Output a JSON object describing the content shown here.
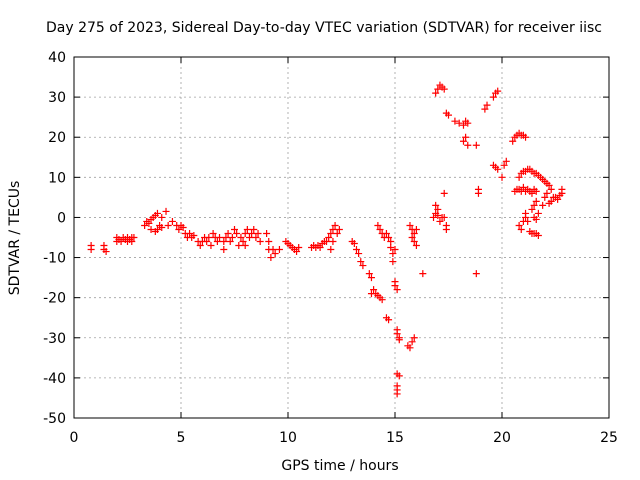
{
  "chart_data": {
    "type": "scatter",
    "title": "Day 275 of 2023, Sidereal Day-to-day VTEC variation (SDTVAR) for receiver iisc",
    "xlabel": "GPS time / hours",
    "ylabel": "SDTVAR / TECUs",
    "xlim": [
      0,
      25
    ],
    "ylim": [
      -50,
      40
    ],
    "xticks": [
      0,
      5,
      10,
      15,
      20,
      25
    ],
    "yticks": [
      -50,
      -40,
      -30,
      -20,
      -10,
      0,
      10,
      20,
      30,
      40
    ],
    "grid": true,
    "marker": "+",
    "series": [
      {
        "name": "SDTVAR",
        "color": "#ff0000",
        "points": [
          [
            0.8,
            -7
          ],
          [
            0.8,
            -8
          ],
          [
            1.4,
            -7
          ],
          [
            1.4,
            -8
          ],
          [
            1.5,
            -8.5
          ],
          [
            2.0,
            -5
          ],
          [
            2.0,
            -6
          ],
          [
            2.1,
            -5.5
          ],
          [
            2.2,
            -6
          ],
          [
            2.3,
            -5
          ],
          [
            2.4,
            -5.5
          ],
          [
            2.5,
            -5
          ],
          [
            2.5,
            -6
          ],
          [
            2.6,
            -5.5
          ],
          [
            2.7,
            -5
          ],
          [
            2.8,
            -5
          ],
          [
            2.7,
            -6
          ],
          [
            3.3,
            -2
          ],
          [
            3.4,
            -1
          ],
          [
            3.5,
            -1.5
          ],
          [
            3.6,
            -0.5
          ],
          [
            3.6,
            -3
          ],
          [
            3.7,
            0
          ],
          [
            3.8,
            -3.5
          ],
          [
            3.8,
            0.5
          ],
          [
            3.9,
            -3
          ],
          [
            3.9,
            1
          ],
          [
            4.0,
            -2
          ],
          [
            4.1,
            0
          ],
          [
            4.1,
            -2.5
          ],
          [
            4.3,
            1.5
          ],
          [
            4.4,
            -2
          ],
          [
            4.6,
            -1
          ],
          [
            4.8,
            -2
          ],
          [
            4.9,
            -3
          ],
          [
            5.0,
            -2
          ],
          [
            5.1,
            -2.5
          ],
          [
            5.2,
            -4
          ],
          [
            5.3,
            -5
          ],
          [
            5.4,
            -4
          ],
          [
            5.5,
            -5
          ],
          [
            5.6,
            -4.5
          ],
          [
            5.8,
            -6
          ],
          [
            5.9,
            -7
          ],
          [
            6.0,
            -6
          ],
          [
            6.1,
            -5
          ],
          [
            6.2,
            -6
          ],
          [
            6.3,
            -5
          ],
          [
            6.4,
            -7
          ],
          [
            6.5,
            -4
          ],
          [
            6.6,
            -5
          ],
          [
            6.7,
            -6
          ],
          [
            6.8,
            -5
          ],
          [
            7.0,
            -6
          ],
          [
            7.0,
            -8
          ],
          [
            7.1,
            -5
          ],
          [
            7.2,
            -4
          ],
          [
            7.3,
            -6
          ],
          [
            7.4,
            -5
          ],
          [
            7.5,
            -3
          ],
          [
            7.6,
            -4
          ],
          [
            7.7,
            -7
          ],
          [
            7.8,
            -5
          ],
          [
            7.9,
            -6
          ],
          [
            8.0,
            -4
          ],
          [
            8.0,
            -7
          ],
          [
            8.1,
            -3
          ],
          [
            8.2,
            -5
          ],
          [
            8.3,
            -4
          ],
          [
            8.4,
            -3
          ],
          [
            8.5,
            -5
          ],
          [
            8.6,
            -4
          ],
          [
            8.7,
            -6
          ],
          [
            9.0,
            -4
          ],
          [
            9.1,
            -6
          ],
          [
            9.1,
            -8
          ],
          [
            9.2,
            -10
          ],
          [
            9.3,
            -8
          ],
          [
            9.4,
            -9
          ],
          [
            9.6,
            -8
          ],
          [
            9.9,
            -6
          ],
          [
            10.0,
            -6.5
          ],
          [
            10.1,
            -7
          ],
          [
            10.2,
            -7.5
          ],
          [
            10.3,
            -8
          ],
          [
            10.4,
            -8.5
          ],
          [
            10.5,
            -7.5
          ],
          [
            11.1,
            -7.5
          ],
          [
            11.2,
            -7
          ],
          [
            11.3,
            -7.5
          ],
          [
            11.4,
            -7
          ],
          [
            11.5,
            -7.5
          ],
          [
            11.6,
            -6.5
          ],
          [
            11.7,
            -6
          ],
          [
            11.8,
            -6
          ],
          [
            11.9,
            -5
          ],
          [
            12.0,
            -4
          ],
          [
            12.0,
            -8
          ],
          [
            12.1,
            -3
          ],
          [
            12.1,
            -6
          ],
          [
            12.2,
            -2
          ],
          [
            12.3,
            -4
          ],
          [
            12.4,
            -3
          ],
          [
            13.0,
            -6
          ],
          [
            13.1,
            -6.5
          ],
          [
            13.2,
            -8
          ],
          [
            13.3,
            -9
          ],
          [
            13.4,
            -11
          ],
          [
            13.5,
            -12
          ],
          [
            13.8,
            -14
          ],
          [
            13.9,
            -15
          ],
          [
            13.9,
            -19
          ],
          [
            14.0,
            -18
          ],
          [
            14.1,
            -19
          ],
          [
            14.2,
            -2
          ],
          [
            14.2,
            -19.5
          ],
          [
            14.3,
            -3
          ],
          [
            14.3,
            -20
          ],
          [
            14.4,
            -4
          ],
          [
            14.4,
            -20.5
          ],
          [
            14.5,
            -5
          ],
          [
            14.6,
            -4
          ],
          [
            14.6,
            -25
          ],
          [
            14.7,
            -5
          ],
          [
            14.7,
            -25.5
          ],
          [
            14.8,
            -6
          ],
          [
            14.8,
            -7.5
          ],
          [
            14.9,
            -9
          ],
          [
            14.9,
            -11
          ],
          [
            15.0,
            -8
          ],
          [
            15.0,
            -16
          ],
          [
            15.0,
            -17
          ],
          [
            15.1,
            -18
          ],
          [
            15.1,
            -28
          ],
          [
            15.1,
            -29
          ],
          [
            15.1,
            -39
          ],
          [
            15.2,
            -30
          ],
          [
            15.2,
            -30.5
          ],
          [
            15.2,
            -39.5
          ],
          [
            15.1,
            -42
          ],
          [
            15.1,
            -43
          ],
          [
            15.1,
            -44
          ],
          [
            15.6,
            -32
          ],
          [
            15.7,
            -32.5
          ],
          [
            15.8,
            -31
          ],
          [
            15.9,
            -30
          ],
          [
            15.7,
            -2
          ],
          [
            15.8,
            -3
          ],
          [
            15.8,
            -5
          ],
          [
            15.9,
            -4
          ],
          [
            15.9,
            -6
          ],
          [
            16.0,
            -7
          ],
          [
            16.0,
            -3
          ],
          [
            16.3,
            -14
          ],
          [
            16.8,
            0
          ],
          [
            16.9,
            1
          ],
          [
            16.9,
            3
          ],
          [
            17.0,
            2
          ],
          [
            17.0,
            0.5
          ],
          [
            17.1,
            -1
          ],
          [
            17.2,
            0
          ],
          [
            17.3,
            0
          ],
          [
            17.3,
            6
          ],
          [
            17.4,
            -2
          ],
          [
            17.4,
            -3
          ],
          [
            16.9,
            31
          ],
          [
            17.0,
            32
          ],
          [
            17.1,
            33
          ],
          [
            17.2,
            32.5
          ],
          [
            17.3,
            32
          ],
          [
            17.4,
            26
          ],
          [
            17.5,
            25.5
          ],
          [
            17.8,
            24
          ],
          [
            18.0,
            23.5
          ],
          [
            18.2,
            23
          ],
          [
            18.3,
            24
          ],
          [
            18.4,
            23.5
          ],
          [
            18.2,
            19
          ],
          [
            18.3,
            20
          ],
          [
            18.4,
            18
          ],
          [
            18.8,
            18
          ],
          [
            18.8,
            -14
          ],
          [
            18.9,
            6
          ],
          [
            18.9,
            7
          ],
          [
            19.2,
            27
          ],
          [
            19.3,
            28
          ],
          [
            19.6,
            30
          ],
          [
            19.7,
            31
          ],
          [
            19.8,
            31.5
          ],
          [
            19.6,
            13
          ],
          [
            19.7,
            12.5
          ],
          [
            19.8,
            12
          ],
          [
            20.0,
            10
          ],
          [
            20.1,
            13
          ],
          [
            20.2,
            14
          ],
          [
            20.5,
            19
          ],
          [
            20.6,
            20
          ],
          [
            20.7,
            20.5
          ],
          [
            20.8,
            21
          ],
          [
            20.9,
            20.5
          ],
          [
            21.0,
            20.5
          ],
          [
            21.1,
            20
          ],
          [
            20.6,
            6.5
          ],
          [
            20.7,
            7
          ],
          [
            20.8,
            7
          ],
          [
            20.9,
            6.5
          ],
          [
            21.0,
            7.5
          ],
          [
            21.1,
            6.5
          ],
          [
            21.2,
            7
          ],
          [
            21.3,
            6.5
          ],
          [
            21.4,
            6
          ],
          [
            21.5,
            7
          ],
          [
            21.6,
            6.5
          ],
          [
            20.8,
            10
          ],
          [
            20.9,
            11
          ],
          [
            21.0,
            11.5
          ],
          [
            21.1,
            11.5
          ],
          [
            21.2,
            12
          ],
          [
            21.3,
            12
          ],
          [
            21.4,
            11.5
          ],
          [
            21.5,
            11
          ],
          [
            21.6,
            11
          ],
          [
            21.7,
            10.5
          ],
          [
            21.8,
            10
          ],
          [
            21.9,
            9.5
          ],
          [
            22.0,
            9
          ],
          [
            22.1,
            8.5
          ],
          [
            22.2,
            8
          ],
          [
            22.3,
            7
          ],
          [
            20.8,
            -2
          ],
          [
            20.9,
            -3
          ],
          [
            21.0,
            -1
          ],
          [
            21.1,
            0
          ],
          [
            21.1,
            1
          ],
          [
            21.2,
            -1
          ],
          [
            21.3,
            -3.5
          ],
          [
            21.4,
            -4
          ],
          [
            21.5,
            -4
          ],
          [
            21.6,
            -4
          ],
          [
            21.7,
            -4.5
          ],
          [
            21.4,
            2
          ],
          [
            21.5,
            3
          ],
          [
            21.5,
            0
          ],
          [
            21.6,
            -0.5
          ],
          [
            21.7,
            1
          ],
          [
            21.6,
            4
          ],
          [
            21.9,
            3
          ],
          [
            22.0,
            5
          ],
          [
            22.1,
            6
          ],
          [
            22.2,
            3.5
          ],
          [
            22.3,
            4
          ],
          [
            22.4,
            5
          ],
          [
            22.5,
            5
          ],
          [
            22.6,
            4.5
          ],
          [
            22.7,
            5.5
          ],
          [
            22.8,
            7
          ],
          [
            22.8,
            6
          ]
        ]
      }
    ]
  }
}
